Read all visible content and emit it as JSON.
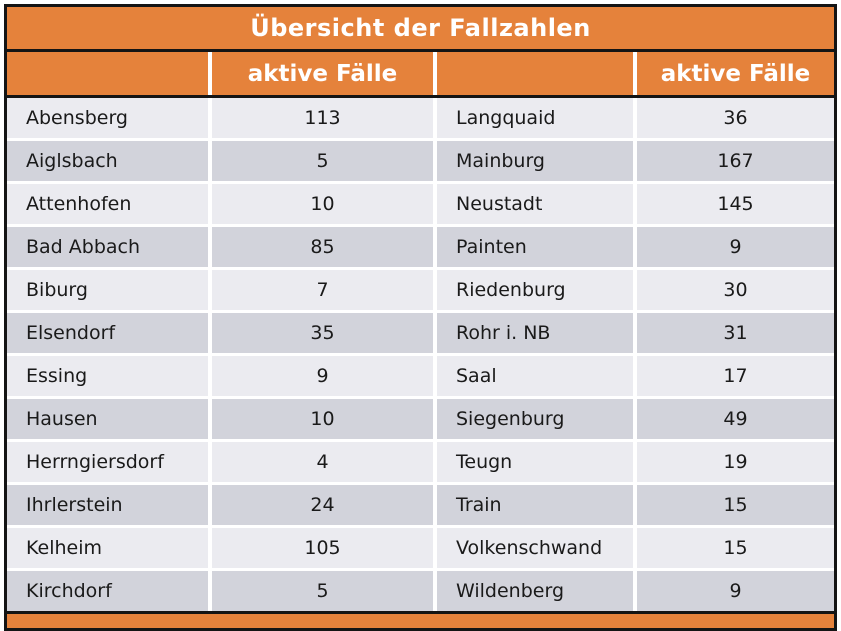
{
  "chart_data": {
    "type": "table",
    "title": "Übersicht der Fallzahlen",
    "column_headers": [
      "",
      "aktive Fälle",
      "",
      "aktive Fälle"
    ],
    "rows": [
      [
        "Abensberg",
        113,
        "Langquaid",
        36
      ],
      [
        "Aiglsbach",
        5,
        "Mainburg",
        167
      ],
      [
        "Attenhofen",
        10,
        "Neustadt",
        145
      ],
      [
        "Bad Abbach",
        85,
        "Painten",
        9
      ],
      [
        "Biburg",
        7,
        "Riedenburg",
        30
      ],
      [
        "Elsendorf",
        35,
        "Rohr i. NB",
        31
      ],
      [
        "Essing",
        9,
        "Saal",
        17
      ],
      [
        "Hausen",
        10,
        "Siegenburg",
        49
      ],
      [
        "Herrngiersdorf",
        4,
        "Teugn",
        19
      ],
      [
        "Ihrlerstein",
        24,
        "Train",
        15
      ],
      [
        "Kelheim",
        105,
        "Volkenschwand",
        15
      ],
      [
        "Kirchdorf",
        5,
        "Wildenberg",
        9
      ]
    ],
    "layout": {
      "row_striping": "alternating light/dark",
      "value_alignment": "center",
      "name_alignment": "left"
    }
  },
  "colors": {
    "accent_orange": "#E5823B",
    "row_light": "#EBEBF0",
    "row_dark": "#D2D3DB",
    "border_black": "#141414",
    "header_text": "#FFFFFF",
    "body_text": "#1A1A1A"
  }
}
